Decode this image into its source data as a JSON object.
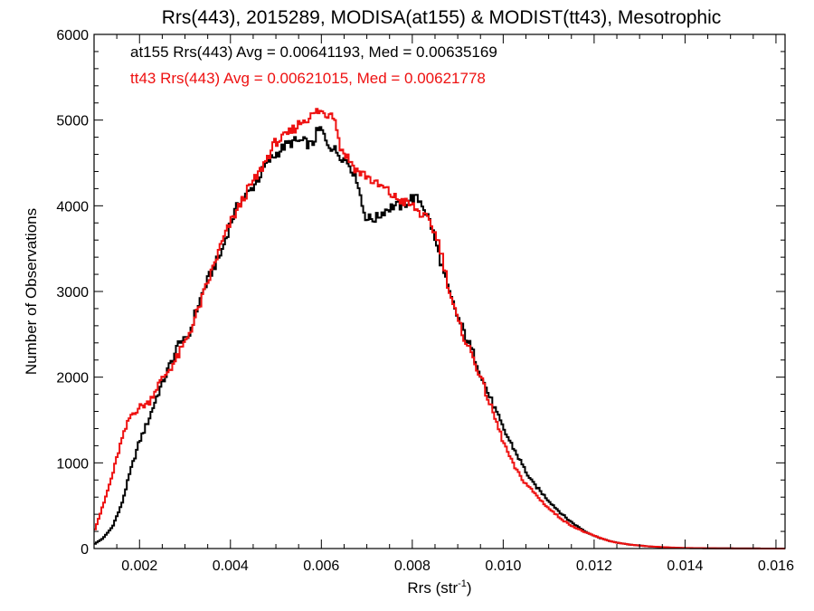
{
  "chart_data": {
    "type": "line",
    "title": "Rrs(443), 2015289, MODISA(at155) & MODIST(tt43), Mesotrophic",
    "xlabel_main": "Rrs (str",
    "xlabel_sup": "-1",
    "xlabel_close": ")",
    "ylabel": "Number of Observations",
    "xlim": [
      0.001,
      0.0162
    ],
    "ylim": [
      0,
      6000
    ],
    "x_ticks": [
      0.002,
      0.004,
      0.006,
      0.008,
      0.01,
      0.012,
      0.014,
      0.016
    ],
    "x_tick_labels": [
      "0.002",
      "0.004",
      "0.006",
      "0.008",
      "0.010",
      "0.012",
      "0.014",
      "0.016"
    ],
    "y_ticks": [
      0,
      1000,
      2000,
      3000,
      4000,
      5000,
      6000
    ],
    "y_tick_labels": [
      "0",
      "1000",
      "2000",
      "3000",
      "4000",
      "5000",
      "6000"
    ],
    "step": 4e-05,
    "grid": false,
    "annotations": [
      {
        "text": "at155 Rrs(443) Avg = 0.00641193, Med = 0.00635169",
        "color": "#000000"
      },
      {
        "text": "tt43 Rrs(443) Avg = 0.00621015, Med = 0.00621778",
        "color": "#ee1111"
      }
    ],
    "series": [
      {
        "color": "#000000",
        "x": [
          0.001,
          0.0012,
          0.0014,
          0.0016,
          0.0018,
          0.002,
          0.0022,
          0.0024,
          0.0026,
          0.0028,
          0.0029,
          0.003,
          0.0031,
          0.0032,
          0.0034,
          0.0036,
          0.0038,
          0.004,
          0.0042,
          0.0044,
          0.0046,
          0.0048,
          0.005,
          0.0052,
          0.0054,
          0.0056,
          0.0058,
          0.0059,
          0.006,
          0.0061,
          0.0062,
          0.0064,
          0.0066,
          0.0068,
          0.0069,
          0.007,
          0.0072,
          0.0074,
          0.0076,
          0.0078,
          0.008,
          0.0082,
          0.0084,
          0.0086,
          0.0088,
          0.009,
          0.0092,
          0.0094,
          0.0096,
          0.0098,
          0.01,
          0.0102,
          0.0104,
          0.0106,
          0.0108,
          0.011,
          0.0112,
          0.0114,
          0.0116,
          0.0118,
          0.012,
          0.0122,
          0.0124,
          0.0126,
          0.0128,
          0.013,
          0.0132,
          0.0134,
          0.0136,
          0.0138,
          0.014,
          0.0145,
          0.015,
          0.0155,
          0.016,
          0.0162
        ],
        "y": [
          50,
          120,
          250,
          500,
          900,
          1250,
          1500,
          1800,
          2050,
          2300,
          2450,
          2400,
          2500,
          2700,
          3000,
          3250,
          3450,
          3800,
          4050,
          4150,
          4300,
          4500,
          4600,
          4700,
          4750,
          4750,
          4700,
          4850,
          4900,
          4750,
          4700,
          4600,
          4500,
          4300,
          4000,
          3850,
          3850,
          3950,
          4000,
          4000,
          4100,
          4050,
          3800,
          3400,
          3000,
          2700,
          2450,
          2200,
          1900,
          1650,
          1400,
          1200,
          1000,
          800,
          680,
          560,
          450,
          350,
          270,
          200,
          150,
          110,
          80,
          60,
          45,
          35,
          25,
          18,
          12,
          8,
          5,
          3,
          2,
          1,
          0,
          0
        ]
      },
      {
        "color": "#ee1111",
        "x": [
          0.001,
          0.0012,
          0.0014,
          0.0016,
          0.0018,
          0.002,
          0.0022,
          0.0024,
          0.0026,
          0.0028,
          0.003,
          0.0032,
          0.0034,
          0.0036,
          0.0038,
          0.004,
          0.0042,
          0.0044,
          0.0046,
          0.0048,
          0.005,
          0.0052,
          0.0054,
          0.0056,
          0.0058,
          0.0059,
          0.006,
          0.0061,
          0.0062,
          0.0063,
          0.0064,
          0.0066,
          0.0068,
          0.007,
          0.0072,
          0.0074,
          0.0076,
          0.0078,
          0.008,
          0.0082,
          0.0084,
          0.0086,
          0.0088,
          0.009,
          0.0092,
          0.0094,
          0.0096,
          0.0098,
          0.01,
          0.0102,
          0.0104,
          0.0106,
          0.0108,
          0.011,
          0.0112,
          0.0114,
          0.0116,
          0.0118,
          0.012,
          0.0122,
          0.0124,
          0.0126,
          0.0128,
          0.013,
          0.0132,
          0.0134,
          0.0136,
          0.0138,
          0.014,
          0.0145,
          0.015,
          0.0155,
          0.016,
          0.0162
        ],
        "y": [
          200,
          500,
          850,
          1250,
          1550,
          1650,
          1700,
          1900,
          2050,
          2200,
          2400,
          2650,
          2950,
          3250,
          3550,
          3800,
          4000,
          4200,
          4350,
          4550,
          4750,
          4800,
          4900,
          5000,
          5050,
          5100,
          5100,
          5050,
          5100,
          5050,
          4700,
          4550,
          4400,
          4350,
          4250,
          4200,
          4100,
          4050,
          4000,
          3900,
          3800,
          3550,
          3050,
          2650,
          2400,
          2150,
          1850,
          1550,
          1250,
          1000,
          820,
          700,
          580,
          470,
          380,
          300,
          240,
          190,
          150,
          110,
          80,
          60,
          45,
          35,
          25,
          20,
          15,
          10,
          7,
          4,
          2,
          1,
          0,
          0
        ]
      }
    ]
  }
}
